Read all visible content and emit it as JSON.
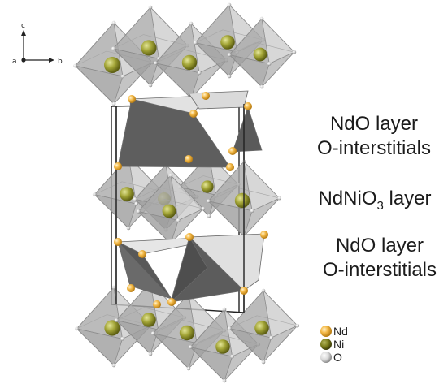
{
  "axes": {
    "c": "c",
    "a": "a",
    "b": "b"
  },
  "layers": {
    "top_line1": "NdO layer",
    "top_line2": "O-interstitials",
    "mid_prefix": "NdNiO",
    "mid_sub": "3",
    "mid_suffix": " layer",
    "bot_line1": "NdO layer",
    "bot_line2": "O-interstitials"
  },
  "legend": [
    {
      "label": "Nd",
      "color": "#f2b440"
    },
    {
      "label": "Ni",
      "color": "#8c8c20"
    },
    {
      "label": "O",
      "color": "#d8d8d8"
    }
  ],
  "colors": {
    "octahedron_fill": "#b9b9b9",
    "octahedron_edge": "#8a8a8a",
    "ni_atom": "#a6a832",
    "nd_atom": "#f2b440",
    "tetra_dark": "#5f5f5f",
    "tetra_light": "#dcdcdc"
  }
}
